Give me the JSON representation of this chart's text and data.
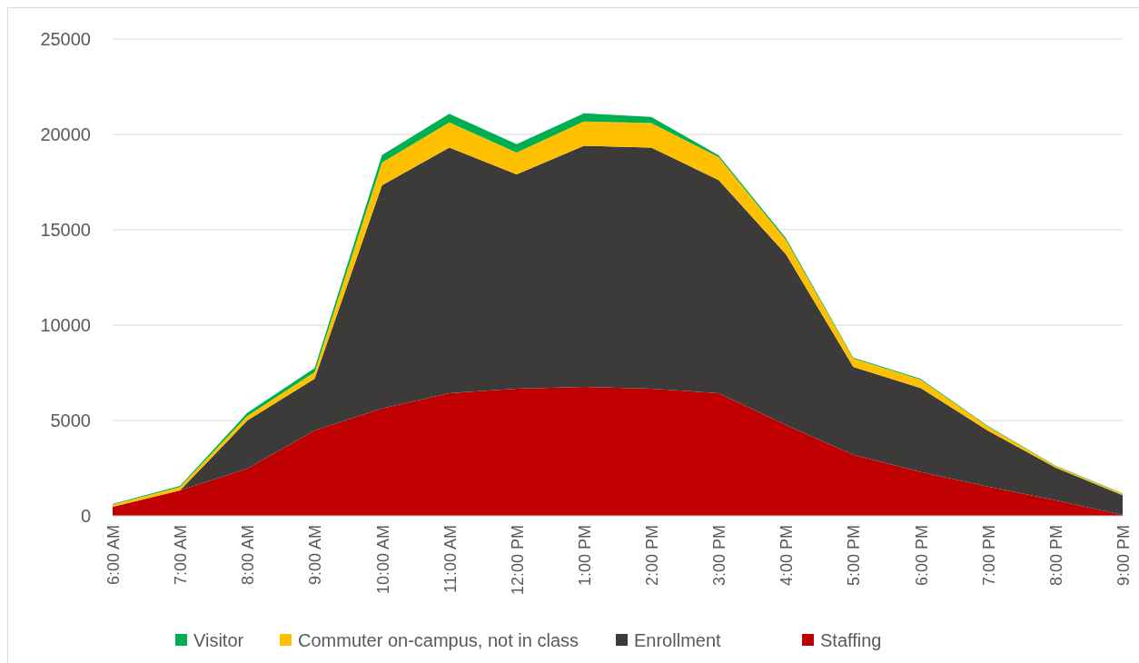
{
  "chart_data": {
    "type": "area",
    "stacked": true,
    "categories": [
      "6:00 AM",
      "7:00 AM",
      "8:00 AM",
      "9:00 AM",
      "10:00 AM",
      "11:00 AM",
      "12:00 PM",
      "1:00 PM",
      "2:00 PM",
      "3:00 PM",
      "4:00 PM",
      "5:00 PM",
      "6:00 PM",
      "7:00 PM",
      "8:00 PM",
      "9:00 PM"
    ],
    "series": [
      {
        "name": "Staffing",
        "color": "#c00000",
        "values": [
          480,
          1330,
          2480,
          4480,
          5630,
          6430,
          6670,
          6760,
          6670,
          6430,
          4760,
          3200,
          2300,
          1540,
          820,
          50
        ]
      },
      {
        "name": "Enrollment",
        "color": "#3c3b3a",
        "values": [
          0,
          0,
          2520,
          2710,
          11700,
          12880,
          11230,
          12650,
          12640,
          11180,
          8950,
          4610,
          4400,
          2930,
          1720,
          1030
        ]
      },
      {
        "name": "Commuter on-campus, not in class",
        "color": "#ffc000",
        "values": [
          120,
          180,
          240,
          350,
          1190,
          1320,
          1150,
          1270,
          1290,
          1200,
          750,
          440,
          440,
          210,
          80,
          80
        ]
      },
      {
        "name": "Visitor",
        "color": "#00b050",
        "values": [
          30,
          60,
          160,
          210,
          400,
          450,
          440,
          430,
          320,
          100,
          100,
          50,
          50,
          30,
          20,
          20
        ]
      }
    ],
    "ylim": [
      0,
      25000
    ],
    "yticks": [
      0,
      5000,
      10000,
      15000,
      20000,
      25000
    ],
    "grid": "y",
    "legend": "bottom"
  }
}
